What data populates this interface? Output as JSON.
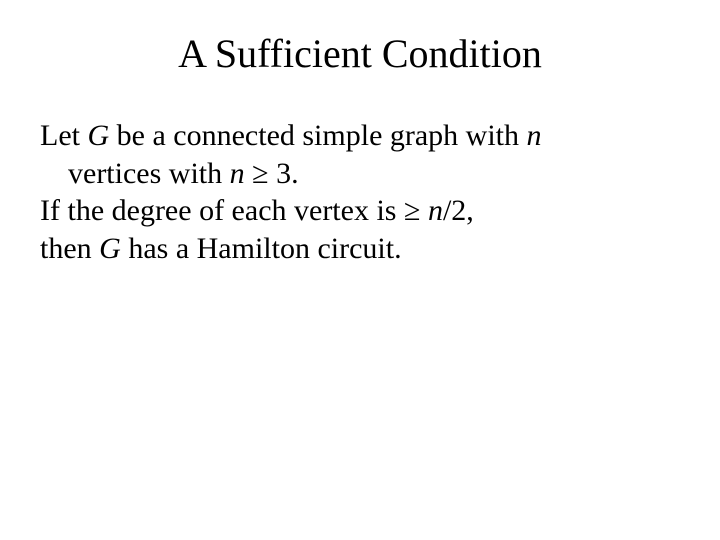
{
  "title": "A Sufficient Condition",
  "lines": {
    "l1a": "Let ",
    "l1b": "G",
    "l1c": " be a connected simple graph with ",
    "l1d": "n",
    "l2a": "vertices with ",
    "l2b": "n",
    "l2c": " ≥ 3.",
    "l3a": "If the degree of each vertex is ≥ ",
    "l3b": "n",
    "l3c": "/2,",
    "l4a": "then ",
    "l4b": "G",
    "l4c": " has a Hamilton circuit."
  },
  "colors": {
    "background": "#ffffff",
    "text": "#000000"
  },
  "typography": {
    "title_fontsize": 40,
    "body_fontsize": 30,
    "font_family": "Times New Roman"
  }
}
